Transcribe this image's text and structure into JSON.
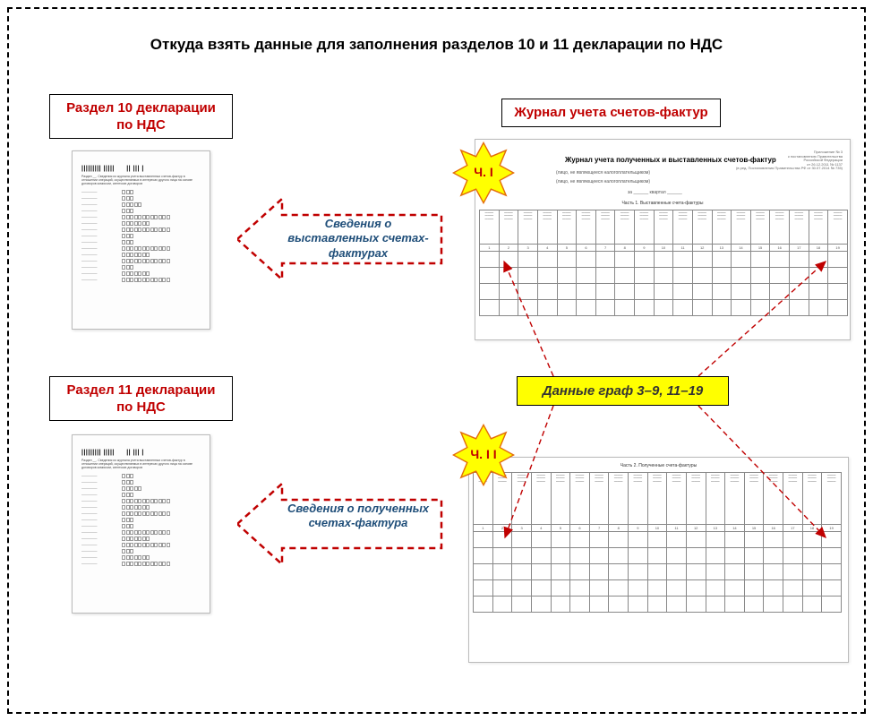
{
  "title": "Откуда взять данные для заполнения разделов 10 и 11 декларации по НДС",
  "boxes": {
    "section10": "Раздел 10 декларации по НДС",
    "section11": "Раздел 11 декларации по НДС",
    "journal": "Журнал учета счетов-фактур"
  },
  "stars": {
    "part1": "Ч. I",
    "part2": "Ч. I I"
  },
  "columns_note": "Данные граф 3–9, 11–19",
  "arrows": {
    "issued": "Сведения о выставленных счетах-фактурах",
    "received": "Сведения о полученных счетах-фактура"
  },
  "journal_doc": {
    "title": "Журнал учета полученных и выставленных счетов-фактур",
    "meta1": "Приложение № 3",
    "meta2": "к постановлению Правительства",
    "meta3": "Российской Федерации",
    "meta4": "от 26.12.2011 № 1137",
    "meta5": "(в ред. Постановления Правительства РФ от 30.07.2014 № 735)",
    "sub1": "(лицо, не являющееся налогоплательщиком)",
    "sub2": "(лицо, не являющееся налогоплательщиком)",
    "period_lbl": "за ______ квартал ______",
    "part1_title": "Часть 1. Выставленные счета-фактуры",
    "part2_title": "Часть 2. Полученные счета-фактуры"
  },
  "colors": {
    "accent_red": "#c00000",
    "star_fill": "#ffff00",
    "star_stroke": "#e36c09",
    "arrow_stroke": "#c00000",
    "caption_blue": "#1f4e79",
    "border": "#000000"
  },
  "table": {
    "num_cols": 19,
    "empty_rows_part1": 4,
    "empty_rows_part2": 5
  }
}
